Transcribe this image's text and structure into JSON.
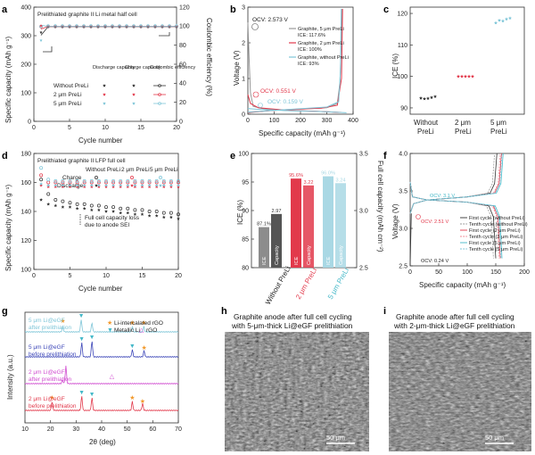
{
  "panel_letters": [
    "a",
    "b",
    "c",
    "d",
    "e",
    "f",
    "g",
    "h",
    "i"
  ],
  "colors": {
    "black": "#333333",
    "red": "#e2394b",
    "blue": "#7fc6d8",
    "gray": "#9a9a9a",
    "orange": "#f29a2e",
    "magenta": "#d04bd0",
    "cyan": "#44b8c8"
  },
  "chart_data": [
    {
      "panel": "a",
      "type": "scatter",
      "title": "Prelithiated graphite II Li metal half cell",
      "xlabel": "Cycle number",
      "ylabel": "Specific capacity (mAh g⁻¹)",
      "y2label": "Coulombic efficiency (%)",
      "xlim": [
        0,
        20
      ],
      "ylim": [
        0,
        400
      ],
      "y2lim": [
        0,
        120
      ],
      "x_ticks": [
        "0",
        "5",
        "10",
        "15",
        "20"
      ],
      "y_ticks": [
        "0",
        "100",
        "200",
        "300",
        "400"
      ],
      "y2_ticks": [
        "0",
        "20",
        "40",
        "60",
        "80",
        "100",
        "120"
      ],
      "legend_headers": [
        "Discharge capacity",
        "Charge capacity",
        "Coulombic efficiency"
      ],
      "series": [
        {
          "name": "Without PreLi",
          "discharge": 360,
          "charge": 358,
          "ce": 99.5
        },
        {
          "name": "2 μm PreLi",
          "discharge": 361,
          "charge": 359,
          "ce": 99.7
        },
        {
          "name": "5 μm PreLi",
          "discharge": 362,
          "charge": 360,
          "ce": 99.8
        }
      ],
      "first_cycle": {
        "without_discharge": 335,
        "twoum_discharge": 360,
        "fiveum_discharge": 305
      }
    },
    {
      "panel": "b",
      "type": "line",
      "xlabel": "Specific capacity (mAh g⁻¹)",
      "ylabel": "Voltage (V)",
      "xlim": [
        0,
        400
      ],
      "ylim": [
        0,
        3
      ],
      "x_ticks": [
        "0",
        "100",
        "200",
        "300",
        "400"
      ],
      "y_ticks": [
        "0",
        "1",
        "2",
        "3"
      ],
      "annotations": [
        "OCV: 2.573 V",
        "OCV: 0.551 V",
        "OCV: 0.159 V"
      ],
      "series": [
        {
          "name": "Graphite, 5 μm PreLi",
          "ice": "ICE: 117.6%"
        },
        {
          "name": "Graphite, 2 μm PreLi",
          "ice": "ICE: 100%"
        },
        {
          "name": "Graphite, without PreLi",
          "ice": "ICE: 93%"
        }
      ]
    },
    {
      "panel": "c",
      "type": "scatter",
      "xlabel": "",
      "ylabel": "ICE (%)",
      "ylim": [
        88,
        122
      ],
      "y_ticks": [
        "90",
        "100",
        "110",
        "120"
      ],
      "categories": [
        "Without PreLi",
        "2 μm PreLi",
        "5 μm PreLi"
      ],
      "values": [
        [
          93.1,
          92.9,
          93.0,
          93.3,
          93.6
        ],
        [
          100.0,
          100.0,
          100.0,
          100.0,
          100.0
        ],
        [
          117.0,
          117.8,
          117.6,
          118.2,
          118.5
        ]
      ]
    },
    {
      "panel": "d",
      "type": "scatter",
      "title": "Prelithiated graphite II LFP full cell",
      "xlabel": "Cycle number",
      "ylabel": "Specific capacity (mAh g⁻¹)",
      "xlim": [
        0,
        20
      ],
      "ylim": [
        100,
        180
      ],
      "x_ticks": [
        "0",
        "5",
        "10",
        "15",
        "20"
      ],
      "y_ticks": [
        "100",
        "120",
        "140",
        "160",
        "180"
      ],
      "legend_columns": [
        "Without PreLi",
        "2 μm PreLi",
        "5 μm PreLi"
      ],
      "legend_rows": [
        "Charge",
        "Discharge"
      ],
      "annotation": "Full cell capacity loss due to anode SEI",
      "series": [
        {
          "name": "Without PreLi charge",
          "values": [
            162,
            152,
            148,
            147,
            146,
            145,
            145,
            144,
            144,
            143,
            143,
            142,
            142,
            141,
            141,
            140,
            140,
            139,
            139,
            138
          ]
        },
        {
          "name": "Without PreLi discharge",
          "values": [
            148,
            145,
            144,
            143,
            143,
            142,
            142,
            141,
            141,
            140,
            140,
            139,
            139,
            138,
            138,
            137,
            137,
            136,
            136,
            135
          ]
        },
        {
          "name": "2 μm PreLi charge",
          "values": [
            165,
            160,
            160,
            160,
            160,
            160,
            160,
            160,
            160,
            160,
            160,
            160,
            160,
            160,
            160,
            160,
            160,
            160,
            160,
            160
          ]
        },
        {
          "name": "2 μm PreLi discharge",
          "values": [
            158,
            157,
            157,
            157,
            157,
            157,
            157,
            157,
            157,
            157,
            157,
            157,
            157,
            157,
            157,
            157,
            157,
            157,
            157,
            157
          ]
        },
        {
          "name": "5 μm PreLi charge",
          "values": [
            170,
            162,
            161,
            161,
            161,
            161,
            161,
            161,
            161,
            161,
            161,
            161,
            161,
            161,
            161,
            161,
            161,
            161,
            161,
            161
          ]
        },
        {
          "name": "5 μm PreLi discharge",
          "values": [
            159,
            158,
            158,
            158,
            158,
            158,
            158,
            158,
            158,
            158,
            158,
            158,
            158,
            158,
            158,
            158,
            158,
            158,
            158,
            158
          ]
        }
      ]
    },
    {
      "panel": "e",
      "type": "bar",
      "ylabel": "ICE (%)",
      "y2label": "Full cell capacity (mAh cm⁻²)",
      "ylim": [
        80,
        100
      ],
      "y2lim": [
        2.5,
        3.5
      ],
      "y_ticks": [
        "80",
        "85",
        "90",
        "95",
        "100"
      ],
      "y2_ticks": [
        "2.5",
        "3.0",
        "3.5"
      ],
      "categories": [
        "Without PreLi",
        "2 μm PreLi",
        "5 μm PreLi"
      ],
      "ice": [
        87.1,
        95.6,
        96.0
      ],
      "capacity": [
        2.97,
        3.22,
        3.24
      ],
      "ice_labels": [
        "87.1%",
        "95.6%",
        "96.0%"
      ],
      "capacity_labels": [
        "2.97",
        "3.22",
        "3.24"
      ],
      "bar_text": [
        "ICE",
        "Capacity"
      ]
    },
    {
      "panel": "f",
      "type": "line",
      "xlabel": "Specific capacity (mAh g⁻¹)",
      "ylabel": "Voltage (V)",
      "xlim": [
        0,
        200
      ],
      "ylim": [
        2.5,
        4.0
      ],
      "x_ticks": [
        "0",
        "50",
        "100",
        "150",
        "200"
      ],
      "y_ticks": [
        "2.5",
        "3.0",
        "3.5",
        "4.0"
      ],
      "annotations": [
        "OCV: 3.1 V",
        "OCV: 2.51 V",
        "OCV: 0.24 V"
      ],
      "legend": [
        "First cycle (without PreLi)",
        "Tenth cycle (without PreLi)",
        "First cycle (2 μm PreLi)",
        "Tenth cycle (2 μm PreLi)",
        "First cycle (5 μm PreLi)",
        "Tenth cycle (5 μm PreLi)"
      ]
    },
    {
      "panel": "g",
      "type": "line",
      "xlabel": "2θ (deg)",
      "ylabel": "Intensity (a.u.)",
      "xlim": [
        10,
        70
      ],
      "x_ticks": [
        "10",
        "20",
        "30",
        "40",
        "50",
        "60",
        "70"
      ],
      "legend": [
        "Li-intercalated rGO",
        "Metallic Li",
        "rGO"
      ],
      "series": [
        {
          "name": "5 μm Li@eGF after prelithiation"
        },
        {
          "name": "5 μm Li@eGF before prelithiation"
        },
        {
          "name": "2 μm Li@eGF after prelithiation"
        },
        {
          "name": "2 μm Li@eGF before prelithiation"
        }
      ]
    }
  ],
  "sem": {
    "h_title": [
      "Graphite anode after full cell cycling",
      "with 5-μm-thick Li@eGF prelithiation"
    ],
    "i_title": [
      "Graphite anode after full cell cycling",
      "with 2-μm-thick Li@eGF prelithiation"
    ],
    "scale": "50 μm"
  }
}
